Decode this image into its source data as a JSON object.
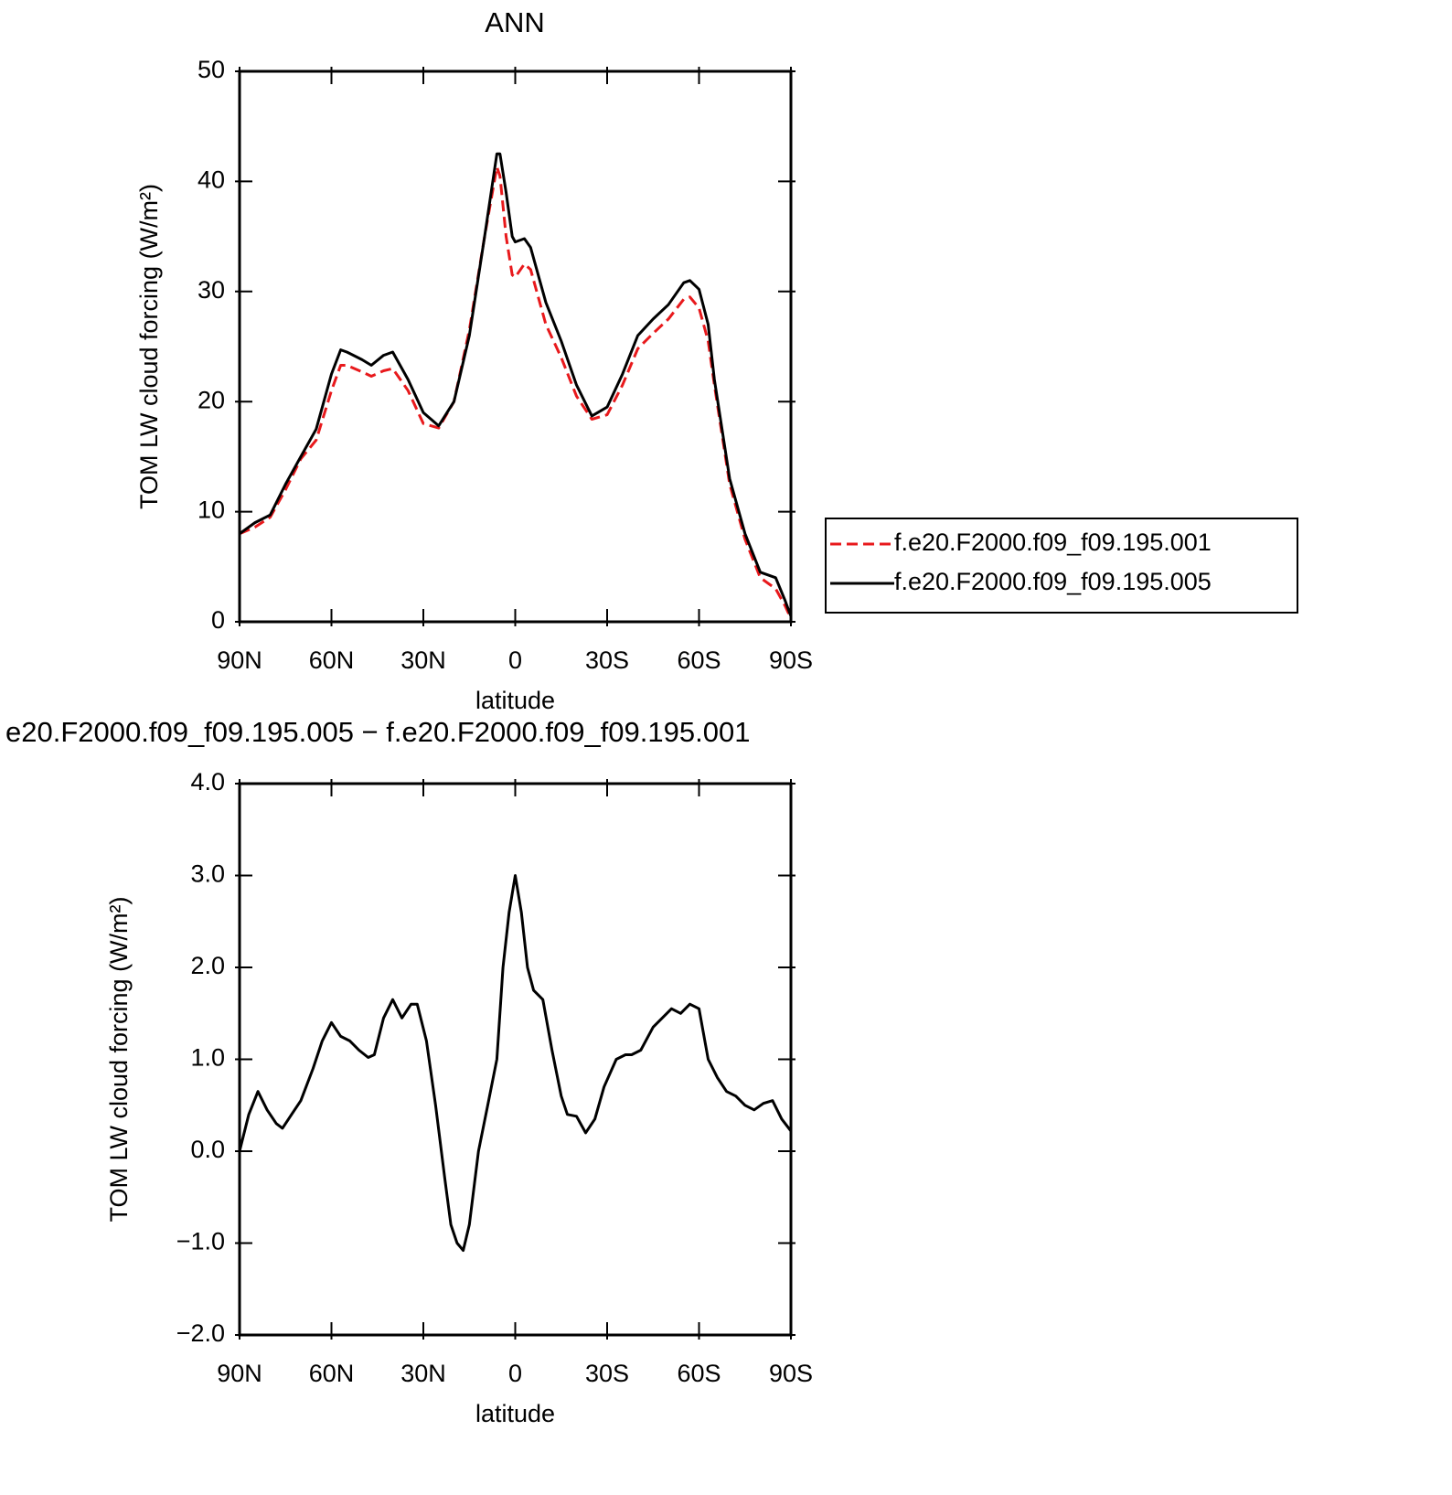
{
  "chart_data": [
    {
      "type": "line",
      "title": "ANN",
      "xlabel": "latitude",
      "ylabel": "TOM LW cloud forcing (W/m²)",
      "x": [
        90,
        85,
        80,
        75,
        70,
        65,
        60,
        57,
        55,
        50,
        47,
        43,
        40,
        35,
        30,
        25,
        20,
        15,
        10,
        6,
        5,
        3,
        1,
        0,
        -3,
        -5,
        -10,
        -15,
        -20,
        -25,
        -30,
        -35,
        -40,
        -45,
        -50,
        -55,
        -57,
        -60,
        -63,
        -65,
        -70,
        -75,
        -80,
        -85,
        -88,
        -90
      ],
      "series": [
        {
          "name": "f.e20.F2000.f09_f09.195.001",
          "color": "#e8191c",
          "linestyle": "dashed",
          "values": [
            8.0,
            8.6,
            9.5,
            12.0,
            14.8,
            16.5,
            21.0,
            23.3,
            23.3,
            22.7,
            22.3,
            22.8,
            23.0,
            21.0,
            18.0,
            17.6,
            20.0,
            26.5,
            35.0,
            41.3,
            40.5,
            35.0,
            31.5,
            31.3,
            32.5,
            32.0,
            27.0,
            24.0,
            20.5,
            18.4,
            18.8,
            21.5,
            24.8,
            26.2,
            27.5,
            29.3,
            29.5,
            28.5,
            25.5,
            21.5,
            12.5,
            7.5,
            4.0,
            3.0,
            1.5,
            0.3
          ]
        },
        {
          "name": "f.e20.F2000.f09_f09.195.005",
          "color": "#000000",
          "linestyle": "solid",
          "values": [
            8.0,
            9.0,
            9.7,
            12.5,
            15.0,
            17.5,
            22.5,
            24.7,
            24.5,
            23.8,
            23.3,
            24.2,
            24.5,
            22.0,
            19.0,
            17.8,
            20.0,
            26.0,
            35.0,
            42.5,
            42.5,
            39.0,
            35.0,
            34.5,
            34.8,
            34.0,
            29.0,
            25.5,
            21.5,
            18.7,
            19.5,
            22.5,
            26.0,
            27.5,
            28.8,
            30.8,
            31.0,
            30.2,
            27.0,
            22.0,
            13.0,
            8.0,
            4.5,
            4.0,
            2.0,
            0.5
          ]
        }
      ],
      "xlim": [
        90,
        -90
      ],
      "xticks": [
        {
          "value": 90,
          "label": "90N"
        },
        {
          "value": 60,
          "label": "60N"
        },
        {
          "value": 30,
          "label": "30N"
        },
        0,
        {
          "value": -30,
          "label": "30S"
        },
        {
          "value": -60,
          "label": "60S"
        },
        {
          "value": -90,
          "label": "90S"
        }
      ],
      "ylim": [
        0,
        50
      ],
      "yticks": [
        0,
        10,
        20,
        30,
        40,
        50
      ],
      "legend": "right"
    },
    {
      "type": "line",
      "title": "e20.F2000.f09_f09.195.005 − f.e20.F2000.f09_f09.195.001",
      "xlabel": "latitude",
      "ylabel": "TOM LW cloud forcing (W/m²)",
      "x": [
        90,
        87,
        84,
        81,
        78,
        76,
        73,
        70,
        66,
        63,
        60,
        57,
        54,
        51,
        48,
        46,
        43,
        40,
        37,
        34,
        32,
        29,
        26,
        23,
        21,
        19,
        17,
        15,
        12,
        9,
        6,
        4,
        2,
        0,
        -2,
        -4,
        -6,
        -9,
        -12,
        -15,
        -17,
        -20,
        -23,
        -26,
        -29,
        -33,
        -36,
        -38,
        -41,
        -45,
        -48,
        -51,
        -54,
        -57,
        -60,
        -63,
        -66,
        -69,
        -72,
        -75,
        -78,
        -81,
        -84,
        -87,
        -90
      ],
      "values": [
        0.0,
        0.4,
        0.65,
        0.45,
        0.3,
        0.25,
        0.4,
        0.55,
        0.9,
        1.2,
        1.4,
        1.25,
        1.2,
        1.1,
        1.02,
        1.05,
        1.45,
        1.65,
        1.45,
        1.6,
        1.6,
        1.2,
        0.5,
        -0.3,
        -0.8,
        -1.0,
        -1.08,
        -0.8,
        0.0,
        0.5,
        1.0,
        2.0,
        2.6,
        3.0,
        2.6,
        2.0,
        1.75,
        1.65,
        1.1,
        0.6,
        0.4,
        0.38,
        0.2,
        0.35,
        0.7,
        1.0,
        1.05,
        1.05,
        1.1,
        1.35,
        1.45,
        1.55,
        1.5,
        1.6,
        1.55,
        1.0,
        0.8,
        0.65,
        0.6,
        0.5,
        0.45,
        0.52,
        0.55,
        0.35,
        0.22
      ],
      "color": "#000000",
      "xlim": [
        90,
        -90
      ],
      "xticks": [
        {
          "value": 90,
          "label": "90N"
        },
        {
          "value": 60,
          "label": "60N"
        },
        {
          "value": 30,
          "label": "30N"
        },
        0,
        {
          "value": -30,
          "label": "30S"
        },
        {
          "value": -60,
          "label": "60S"
        },
        {
          "value": -90,
          "label": "90S"
        }
      ],
      "ylim": [
        -2,
        4
      ],
      "yticks": [
        {
          "value": -2,
          "label": "−2.0"
        },
        {
          "value": -1,
          "label": "−1.0"
        },
        {
          "value": 0,
          "label": "0.0"
        },
        {
          "value": 1,
          "label": "1.0"
        },
        {
          "value": 2,
          "label": "2.0"
        },
        {
          "value": 3,
          "label": "3.0"
        },
        {
          "value": 4,
          "label": "4.0"
        }
      ]
    }
  ]
}
